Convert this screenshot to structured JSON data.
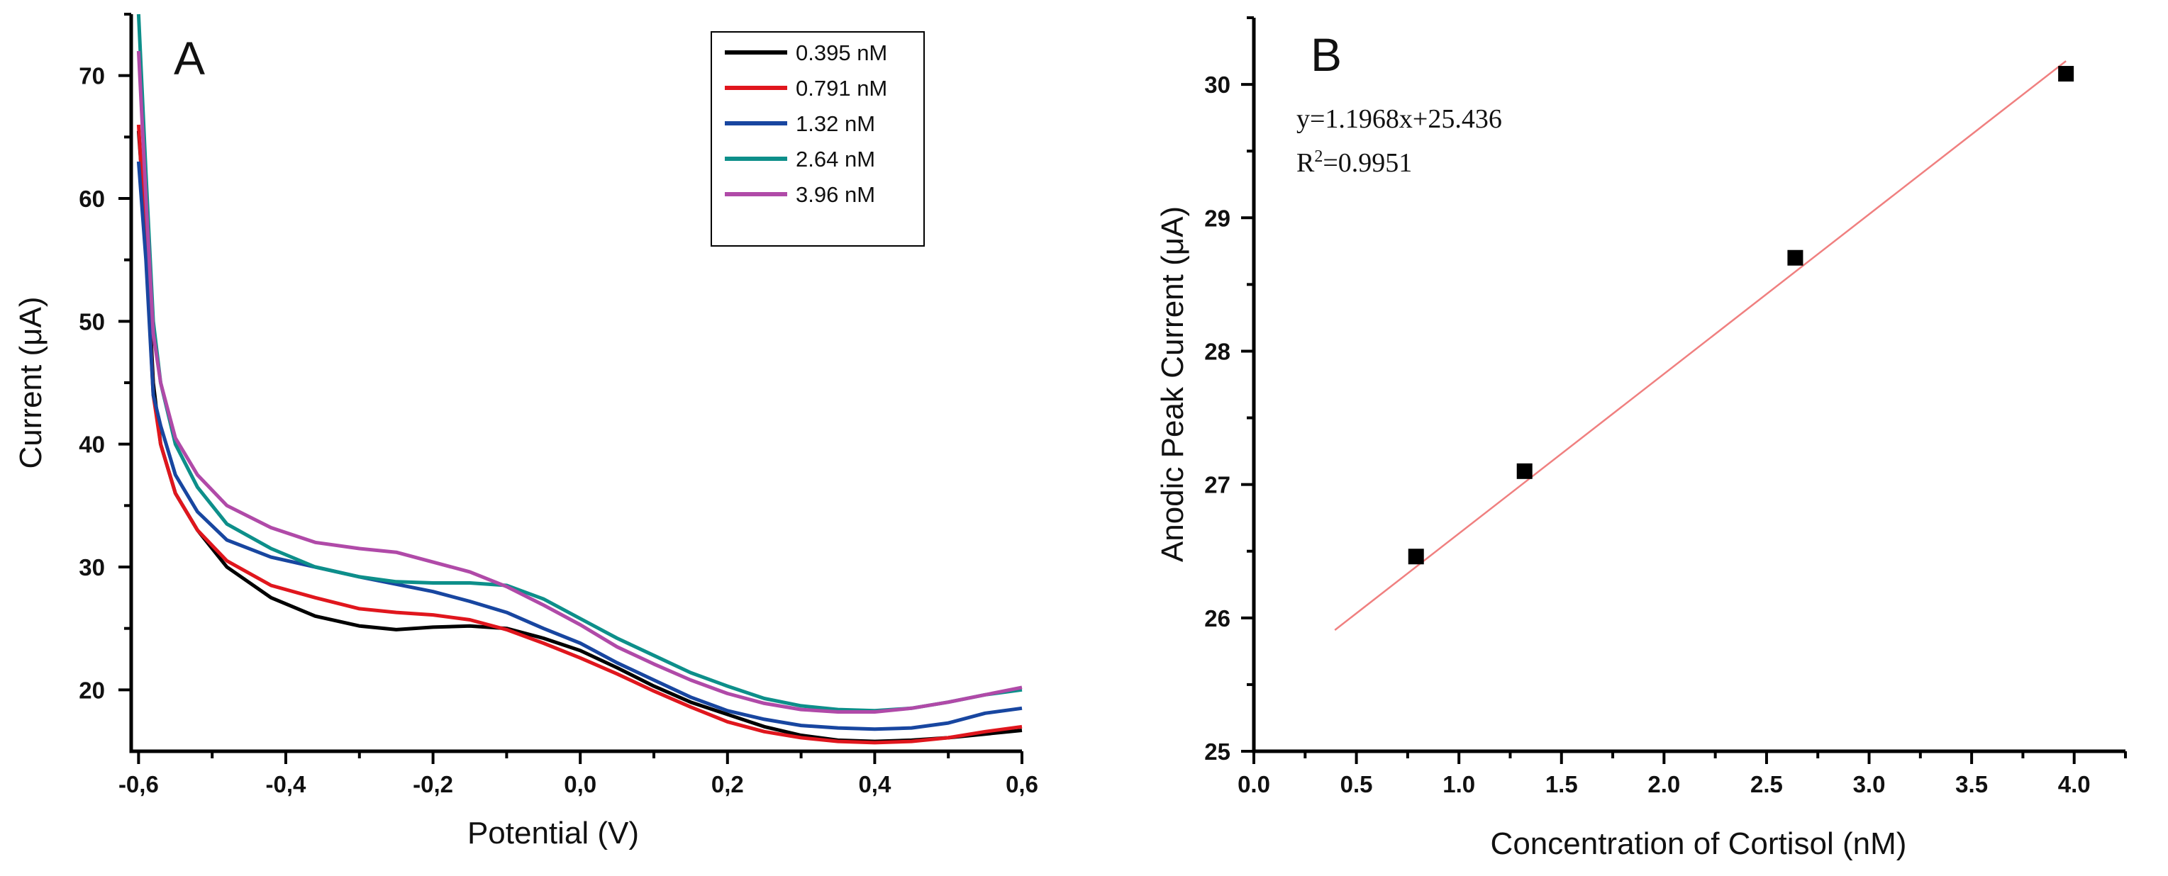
{
  "chart_data": [
    {
      "type": "line",
      "panel": "A",
      "xlabel": "Potential (V)",
      "ylabel": "Current (μA)",
      "xlim": [
        -0.61,
        0.6
      ],
      "ylim": [
        15,
        75
      ],
      "xticks": [
        -0.6,
        -0.4,
        -0.2,
        0.0,
        0.2,
        0.4,
        0.6
      ],
      "xtick_labels": [
        "-0,6",
        "-0,4",
        "-0,2",
        "0,0",
        "0,2",
        "0,4",
        "0,6"
      ],
      "yticks": [
        20,
        30,
        40,
        50,
        60,
        70
      ],
      "ytick_labels": [
        "20",
        "30",
        "40",
        "50",
        "60",
        "70"
      ],
      "legend_position": "top-right",
      "series": [
        {
          "name": "0.395 nM",
          "color": "#000000",
          "points": [
            [
              -0.6,
              65.5
            ],
            [
              -0.59,
              57
            ],
            [
              -0.58,
              45
            ],
            [
              -0.57,
              40
            ],
            [
              -0.55,
              36
            ],
            [
              -0.52,
              33
            ],
            [
              -0.48,
              30
            ],
            [
              -0.42,
              27.5
            ],
            [
              -0.36,
              26
            ],
            [
              -0.3,
              25.2
            ],
            [
              -0.25,
              24.9
            ],
            [
              -0.2,
              25.1
            ],
            [
              -0.15,
              25.2
            ],
            [
              -0.1,
              25
            ],
            [
              -0.05,
              24.2
            ],
            [
              0.0,
              23.2
            ],
            [
              0.05,
              21.8
            ],
            [
              0.1,
              20.3
            ],
            [
              0.15,
              19
            ],
            [
              0.2,
              18
            ],
            [
              0.25,
              17
            ],
            [
              0.3,
              16.3
            ],
            [
              0.35,
              15.9
            ],
            [
              0.4,
              15.8
            ],
            [
              0.45,
              15.9
            ],
            [
              0.5,
              16.1
            ],
            [
              0.55,
              16.4
            ],
            [
              0.6,
              16.7
            ]
          ]
        },
        {
          "name": "0.791 nM",
          "color": "#e0161d",
          "points": [
            [
              -0.6,
              66
            ],
            [
              -0.59,
              56
            ],
            [
              -0.58,
              44
            ],
            [
              -0.57,
              40
            ],
            [
              -0.55,
              36
            ],
            [
              -0.52,
              33
            ],
            [
              -0.48,
              30.5
            ],
            [
              -0.42,
              28.5
            ],
            [
              -0.36,
              27.5
            ],
            [
              -0.3,
              26.6
            ],
            [
              -0.25,
              26.3
            ],
            [
              -0.2,
              26.1
            ],
            [
              -0.15,
              25.7
            ],
            [
              -0.1,
              24.9
            ],
            [
              -0.05,
              23.8
            ],
            [
              0.0,
              22.6
            ],
            [
              0.05,
              21.3
            ],
            [
              0.1,
              19.9
            ],
            [
              0.15,
              18.6
            ],
            [
              0.2,
              17.4
            ],
            [
              0.25,
              16.6
            ],
            [
              0.3,
              16.1
            ],
            [
              0.35,
              15.8
            ],
            [
              0.4,
              15.7
            ],
            [
              0.45,
              15.8
            ],
            [
              0.5,
              16.1
            ],
            [
              0.55,
              16.6
            ],
            [
              0.6,
              17
            ]
          ]
        },
        {
          "name": "1.32 nM",
          "color": "#1846a0",
          "points": [
            [
              -0.6,
              63
            ],
            [
              -0.59,
              55
            ],
            [
              -0.58,
              44
            ],
            [
              -0.57,
              41.5
            ],
            [
              -0.55,
              37.5
            ],
            [
              -0.52,
              34.5
            ],
            [
              -0.48,
              32.2
            ],
            [
              -0.42,
              30.8
            ],
            [
              -0.36,
              30
            ],
            [
              -0.3,
              29.2
            ],
            [
              -0.25,
              28.6
            ],
            [
              -0.2,
              28
            ],
            [
              -0.15,
              27.2
            ],
            [
              -0.1,
              26.3
            ],
            [
              -0.05,
              25
            ],
            [
              0.0,
              23.8
            ],
            [
              0.05,
              22.2
            ],
            [
              0.1,
              20.8
            ],
            [
              0.15,
              19.4
            ],
            [
              0.2,
              18.3
            ],
            [
              0.25,
              17.6
            ],
            [
              0.3,
              17.1
            ],
            [
              0.35,
              16.9
            ],
            [
              0.4,
              16.8
            ],
            [
              0.45,
              16.9
            ],
            [
              0.5,
              17.3
            ],
            [
              0.55,
              18.1
            ],
            [
              0.6,
              18.5
            ]
          ]
        },
        {
          "name": "2.64 nM",
          "color": "#0d8f8a",
          "points": [
            [
              -0.6,
              75
            ],
            [
              -0.59,
              62
            ],
            [
              -0.58,
              50
            ],
            [
              -0.57,
              45
            ],
            [
              -0.55,
              40
            ],
            [
              -0.52,
              36.5
            ],
            [
              -0.48,
              33.5
            ],
            [
              -0.42,
              31.5
            ],
            [
              -0.36,
              30
            ],
            [
              -0.3,
              29.2
            ],
            [
              -0.25,
              28.8
            ],
            [
              -0.2,
              28.7
            ],
            [
              -0.15,
              28.7
            ],
            [
              -0.1,
              28.5
            ],
            [
              -0.05,
              27.4
            ],
            [
              0.0,
              25.8
            ],
            [
              0.05,
              24.2
            ],
            [
              0.1,
              22.8
            ],
            [
              0.15,
              21.4
            ],
            [
              0.2,
              20.3
            ],
            [
              0.25,
              19.3
            ],
            [
              0.3,
              18.7
            ],
            [
              0.35,
              18.4
            ],
            [
              0.4,
              18.3
            ],
            [
              0.45,
              18.5
            ],
            [
              0.5,
              19
            ],
            [
              0.55,
              19.6
            ],
            [
              0.6,
              20
            ]
          ]
        },
        {
          "name": "3.96 nM",
          "color": "#b04aa8",
          "points": [
            [
              -0.6,
              72
            ],
            [
              -0.59,
              60
            ],
            [
              -0.58,
              49
            ],
            [
              -0.57,
              45
            ],
            [
              -0.55,
              40.5
            ],
            [
              -0.52,
              37.5
            ],
            [
              -0.48,
              35
            ],
            [
              -0.42,
              33.2
            ],
            [
              -0.36,
              32
            ],
            [
              -0.3,
              31.5
            ],
            [
              -0.25,
              31.2
            ],
            [
              -0.2,
              30.4
            ],
            [
              -0.15,
              29.6
            ],
            [
              -0.1,
              28.4
            ],
            [
              -0.05,
              26.9
            ],
            [
              0.0,
              25.3
            ],
            [
              0.05,
              23.5
            ],
            [
              0.1,
              22.1
            ],
            [
              0.15,
              20.8
            ],
            [
              0.2,
              19.7
            ],
            [
              0.25,
              18.9
            ],
            [
              0.3,
              18.4
            ],
            [
              0.35,
              18.2
            ],
            [
              0.4,
              18.2
            ],
            [
              0.45,
              18.5
            ],
            [
              0.5,
              19
            ],
            [
              0.55,
              19.6
            ],
            [
              0.6,
              20.2
            ]
          ]
        }
      ]
    },
    {
      "type": "scatter",
      "panel": "B",
      "xlabel": "Concentration of Cortisol (nM)",
      "ylabel": "Anodic Peak Current (μA)",
      "xlim": [
        0.0,
        4.25
      ],
      "ylim": [
        25,
        30.5
      ],
      "xticks": [
        0.0,
        0.5,
        1.0,
        1.5,
        2.0,
        2.5,
        3.0,
        3.5,
        4.0
      ],
      "xtick_labels": [
        "0.0",
        "0.5",
        "1.0",
        "1.5",
        "2.0",
        "2.5",
        "3.0",
        "3.5",
        "4.0"
      ],
      "yticks": [
        25,
        26,
        27,
        28,
        29,
        30
      ],
      "ytick_labels": [
        "25",
        "26",
        "27",
        "28",
        "29",
        "30"
      ],
      "points": [
        [
          0.791,
          26.46
        ],
        [
          1.32,
          27.1
        ],
        [
          2.64,
          28.7
        ],
        [
          3.96,
          30.08
        ]
      ],
      "marker_color": "#000000",
      "fit": {
        "slope": 1.1968,
        "intercept": 25.436,
        "x_range": [
          0.395,
          3.96
        ],
        "color": "#f08080"
      },
      "equation": {
        "prefix": "y=1.1968x+25.436",
        "r_label": "R",
        "r_sup": "2",
        "r_value": "=0.9951"
      }
    }
  ]
}
